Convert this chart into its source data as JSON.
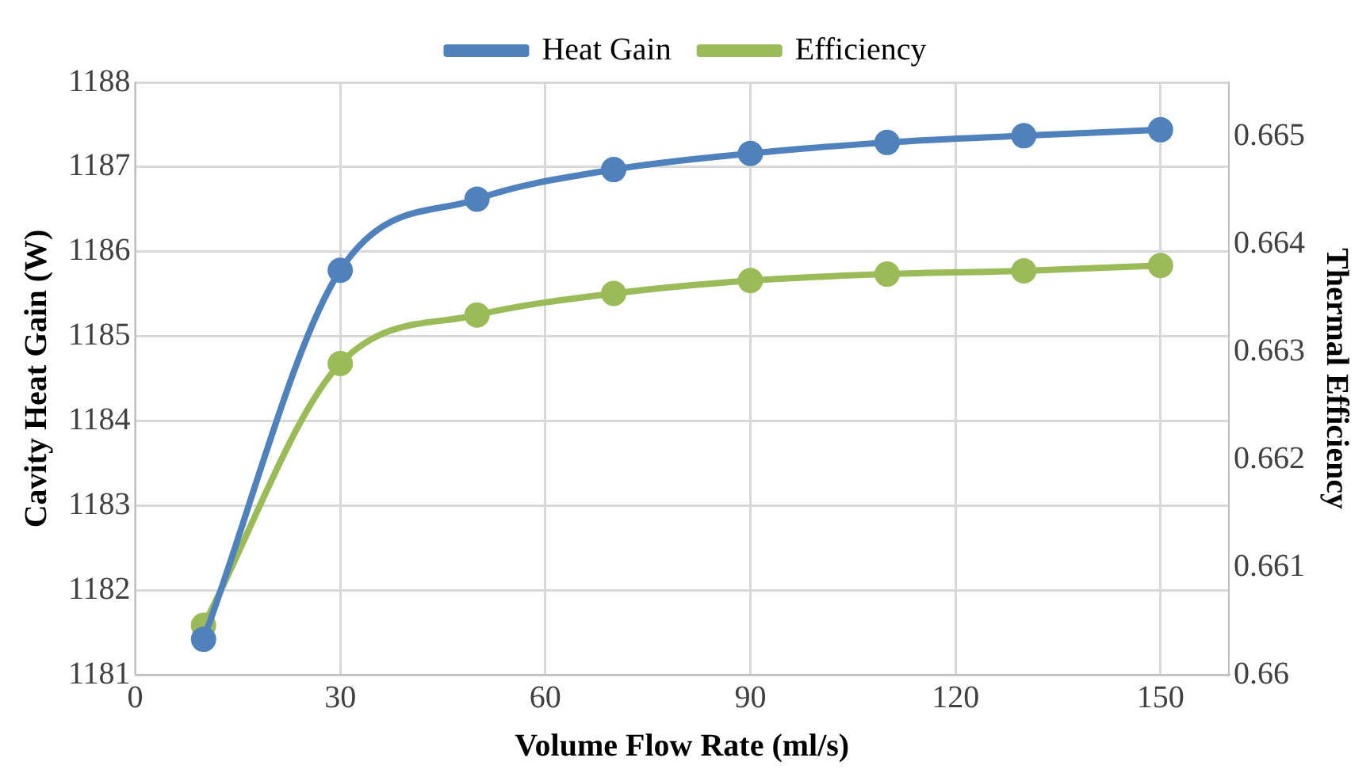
{
  "chart_data": {
    "type": "line",
    "xlabel": "Volume Flow Rate (ml/s)",
    "ylabel": "Cavity Heat Gain (W)",
    "y2label": "Thermal Efficiency",
    "x": [
      10,
      30,
      50,
      70,
      90,
      110,
      130,
      150
    ],
    "series": [
      {
        "name": "Heat Gain",
        "color": "#4f81bd",
        "values": [
          1181.42,
          1185.78,
          1186.62,
          1186.97,
          1187.16,
          1187.29,
          1187.37,
          1187.44
        ]
      },
      {
        "name": "Efficiency",
        "color": "#9bbb59",
        "axis": "y2",
        "values": [
          0.66046,
          0.66289,
          0.66334,
          0.66354,
          0.66366,
          0.66372,
          0.66375,
          0.6638
        ]
      }
    ],
    "xlim": [
      0,
      160
    ],
    "xticks": [
      0,
      30,
      60,
      90,
      120,
      150
    ],
    "ylim": [
      1181,
      1188
    ],
    "yticks": [
      1181,
      1182,
      1183,
      1184,
      1185,
      1186,
      1187,
      1188
    ],
    "y2lim": [
      0.66,
      0.6655
    ],
    "y2ticks": [
      0.66,
      0.661,
      0.662,
      0.663,
      0.664,
      0.665
    ],
    "grid": true,
    "legend": "top",
    "marker": "circle",
    "line_style": "solid"
  }
}
